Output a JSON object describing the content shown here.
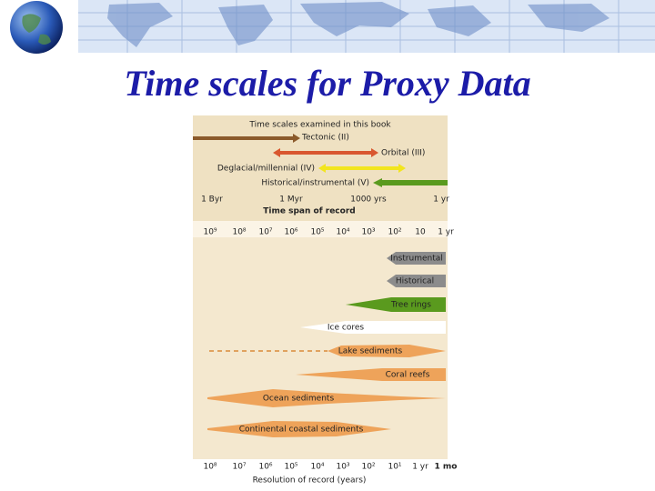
{
  "header": {
    "title": "Time scales for Proxy Data"
  },
  "figure": {
    "top_panel": {
      "heading": "Time scales examined in this book",
      "scales": [
        "Tectonic (II)",
        "Orbital (III)",
        "Deglacial/millennial (IV)",
        "Historical/instrumental (V)"
      ],
      "axis_labels": [
        "1 Byr",
        "1 Myr",
        "1000 yrs",
        "1 yr"
      ],
      "axis_title": "Time span of record"
    },
    "span_ticks": [
      "10⁹",
      "10⁸",
      "10⁷",
      "10⁶",
      "10⁵",
      "10⁴",
      "10³",
      "10²",
      "10",
      "1 yr"
    ],
    "records": [
      "Instrumental",
      "Historical",
      "Tree rings",
      "Ice cores",
      "Lake sediments",
      "Coral reefs",
      "Ocean sediments",
      "Continental coastal sediments"
    ],
    "resolution_ticks": [
      "10⁸",
      "10⁷",
      "10⁶",
      "10⁵",
      "10⁴",
      "10³",
      "10²",
      "10¹",
      "1 yr",
      "1 mo"
    ],
    "resolution_title": "Resolution of record (years)"
  }
}
